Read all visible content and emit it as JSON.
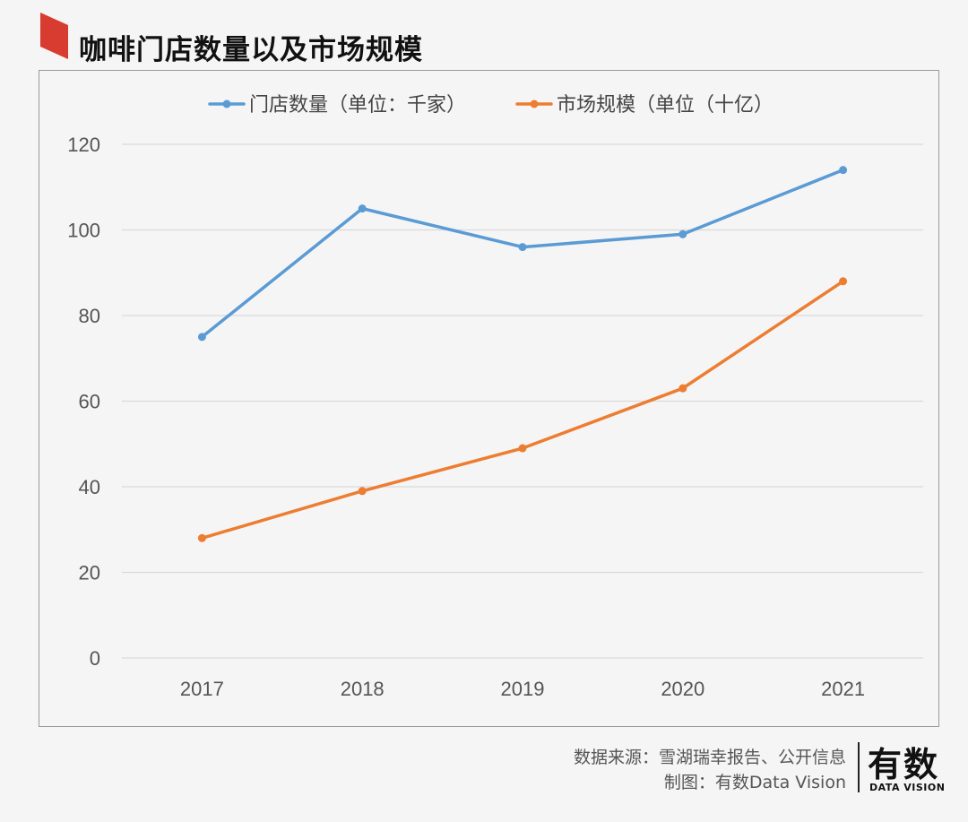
{
  "page": {
    "title": "咖啡门店数量以及市场规模",
    "source": "数据来源：雪湖瑞幸报告、公开信息",
    "credit": "制图：有数Data Vision",
    "logo_main": "有数",
    "logo_sub": "DATA VISION",
    "accent": "#e03a2f"
  },
  "chart_data": {
    "type": "line",
    "title": "",
    "xlabel": "",
    "ylabel": "",
    "categories": [
      "2017",
      "2018",
      "2019",
      "2020",
      "2021"
    ],
    "ylim": [
      0,
      120
    ],
    "yticks": [
      0,
      20,
      40,
      60,
      80,
      100,
      120
    ],
    "grid": true,
    "legend_position": "top",
    "series": [
      {
        "name": "门店数量（单位：千家）",
        "values": [
          75,
          105,
          96,
          99,
          114
        ],
        "color": "#5b9bd5"
      },
      {
        "name": "市场规模（单位（十亿）",
        "values": [
          28,
          39,
          49,
          63,
          88
        ],
        "color": "#ed7d31"
      }
    ]
  }
}
